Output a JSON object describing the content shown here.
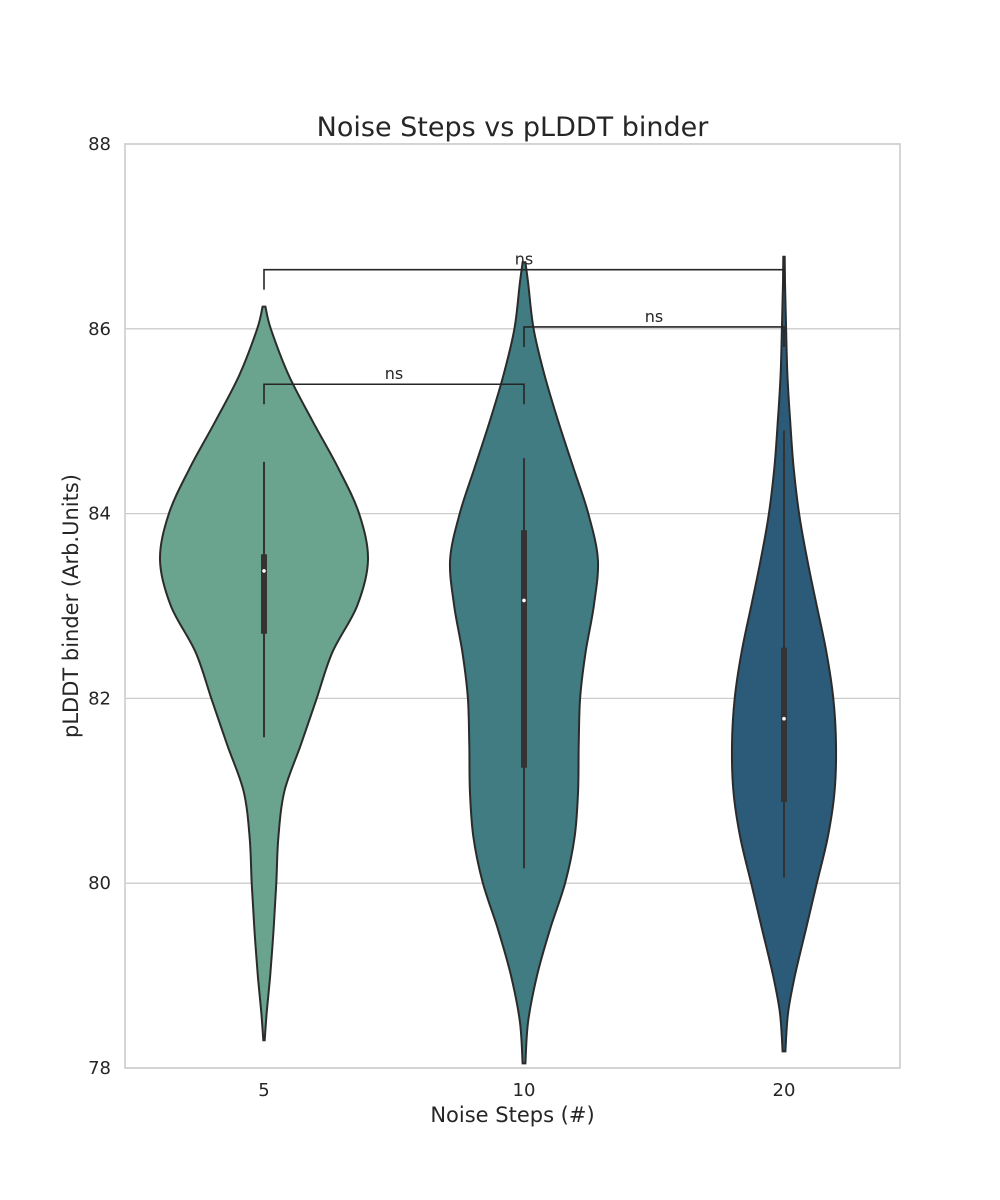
{
  "chart_data": {
    "type": "violin",
    "title": "Noise Steps vs pLDDT binder",
    "xlabel": "Noise Steps (#)",
    "ylabel": "pLDDT binder (Arb.Units)",
    "ylim": [
      78,
      88
    ],
    "yticks": [
      "78",
      "80",
      "82",
      "84",
      "86",
      "88"
    ],
    "grid": true,
    "categories": [
      "5",
      "10",
      "20"
    ],
    "colors": [
      "#6aa38e",
      "#407c82",
      "#2c5b7a"
    ],
    "series": [
      {
        "category": "5",
        "min": 78.3,
        "max": 86.24,
        "whisker_low": 81.58,
        "whisker_high": 84.56,
        "q1": 82.7,
        "q3": 83.56,
        "median": 83.38,
        "density": [
          [
            78.3,
            0.01
          ],
          [
            78.6,
            0.04
          ],
          [
            79.0,
            0.09
          ],
          [
            79.5,
            0.14
          ],
          [
            80.0,
            0.18
          ],
          [
            80.5,
            0.21
          ],
          [
            81.0,
            0.3
          ],
          [
            81.5,
            0.54
          ],
          [
            82.0,
            0.77
          ],
          [
            82.5,
            1.0
          ],
          [
            83.0,
            1.36
          ],
          [
            83.5,
            1.52
          ],
          [
            84.0,
            1.39
          ],
          [
            84.5,
            1.08
          ],
          [
            85.0,
            0.71
          ],
          [
            85.5,
            0.36
          ],
          [
            86.0,
            0.1
          ],
          [
            86.24,
            0.02
          ]
        ]
      },
      {
        "category": "10",
        "min": 78.05,
        "max": 86.72,
        "whisker_low": 80.16,
        "whisker_high": 84.6,
        "q1": 81.25,
        "q3": 83.82,
        "median": 83.06,
        "density": [
          [
            78.05,
            0.02
          ],
          [
            78.5,
            0.06
          ],
          [
            79.0,
            0.19
          ],
          [
            79.5,
            0.38
          ],
          [
            80.0,
            0.6
          ],
          [
            80.5,
            0.74
          ],
          [
            81.0,
            0.79
          ],
          [
            81.5,
            0.8
          ],
          [
            82.0,
            0.82
          ],
          [
            82.5,
            0.9
          ],
          [
            83.0,
            1.02
          ],
          [
            83.5,
            1.08
          ],
          [
            84.0,
            0.94
          ],
          [
            84.5,
            0.72
          ],
          [
            85.0,
            0.5
          ],
          [
            85.5,
            0.3
          ],
          [
            86.0,
            0.14
          ],
          [
            86.5,
            0.06
          ],
          [
            86.72,
            0.02
          ]
        ]
      },
      {
        "category": "20",
        "min": 78.18,
        "max": 86.78,
        "whisker_low": 80.06,
        "whisker_high": 84.9,
        "q1": 80.88,
        "q3": 82.55,
        "median": 81.78,
        "density": [
          [
            78.18,
            0.02
          ],
          [
            78.6,
            0.06
          ],
          [
            79.0,
            0.16
          ],
          [
            79.5,
            0.32
          ],
          [
            80.0,
            0.48
          ],
          [
            80.5,
            0.64
          ],
          [
            81.0,
            0.74
          ],
          [
            81.5,
            0.76
          ],
          [
            82.0,
            0.72
          ],
          [
            82.5,
            0.62
          ],
          [
            83.0,
            0.48
          ],
          [
            83.5,
            0.34
          ],
          [
            84.0,
            0.22
          ],
          [
            84.5,
            0.14
          ],
          [
            85.0,
            0.09
          ],
          [
            85.5,
            0.05
          ],
          [
            86.0,
            0.03
          ],
          [
            86.5,
            0.015
          ],
          [
            86.78,
            0.01
          ]
        ]
      }
    ],
    "annotations": [
      {
        "from": "5",
        "to": "10",
        "text": "ns",
        "level": 85.4
      },
      {
        "from": "10",
        "to": "20",
        "text": "ns",
        "level": 86.02
      },
      {
        "from": "5",
        "to": "20",
        "text": "ns",
        "level": 86.64
      }
    ]
  }
}
